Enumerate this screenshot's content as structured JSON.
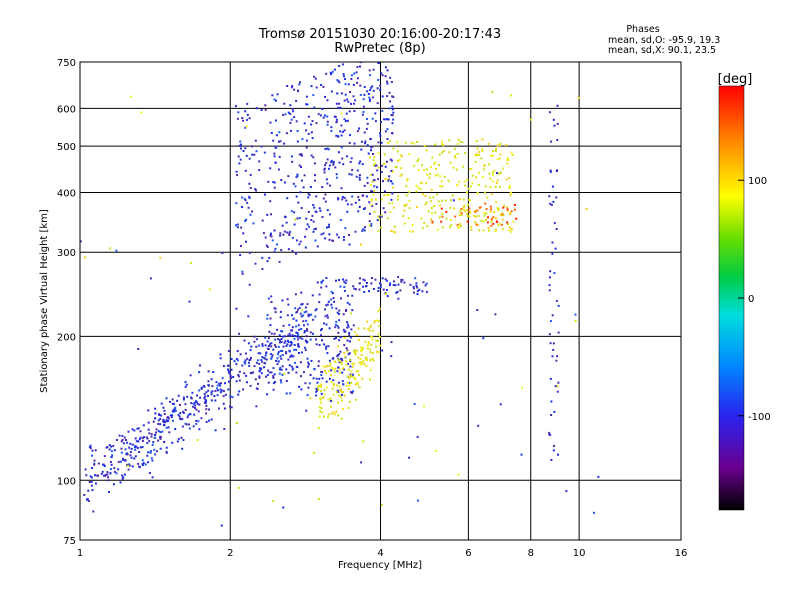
{
  "chart_data": {
    "type": "scatter",
    "title": "Tromsø 20151030 20:16:00-20:17:43",
    "subtitle": "RwPretec (8p)",
    "xlabel": "Frequency [MHz]",
    "ylabel": "Stationary phase Virtual Height [km]",
    "x_scale": "log",
    "y_scale": "log",
    "xlim": [
      1,
      16
    ],
    "ylim": [
      75,
      750
    ],
    "x_ticks": [
      1,
      2,
      4,
      6,
      8,
      10,
      16
    ],
    "y_ticks": [
      75,
      100,
      200,
      300,
      400,
      500,
      600,
      750
    ],
    "grid": true,
    "stats": {
      "heading": "Phases",
      "line_o": "mean, sd,O: -95.9, 19.3",
      "line_x": "mean, sd,X:  90.1, 23.5"
    },
    "colorbar": {
      "label": "[deg]",
      "range": [
        -180,
        180
      ],
      "ticks": [
        100,
        0,
        -100
      ],
      "colormap": "rainbow (black-purple-blue-cyan-green-yellow-red)"
    },
    "clusters": [
      {
        "name": "blue diagonal trace",
        "phase_mean_deg": -95.9,
        "freq_range_mhz": [
          1.0,
          2.8
        ],
        "height_range_km": [
          100,
          200
        ]
      },
      {
        "name": "blue upper traces",
        "phase_mean_deg": -95.9,
        "freq_range_mhz": [
          2.0,
          4.3
        ],
        "height_range_km": [
          250,
          650
        ]
      },
      {
        "name": "yellow traces",
        "phase_mean_deg": 90.1,
        "freq_range_mhz": [
          3.0,
          7.5
        ],
        "height_range_km": [
          140,
          650
        ]
      }
    ]
  },
  "colors": {
    "background": "#ffffff",
    "axes": "#000000",
    "grid": "#000000",
    "o_mode": "#2233dd",
    "x_mode": "#e6e619"
  }
}
